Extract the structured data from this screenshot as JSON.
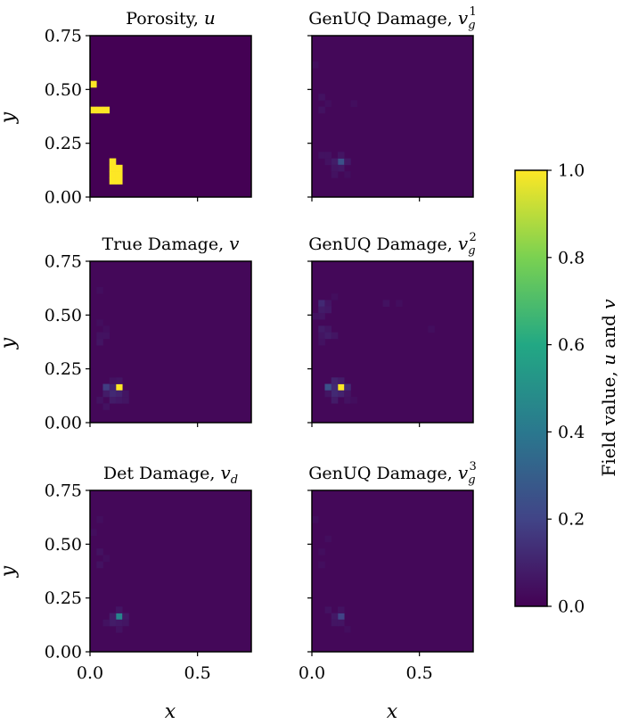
{
  "figure": {
    "colorbar": {
      "label_prefix": "Field value, ",
      "label_u": "u",
      "label_and": " and ",
      "label_v": "v",
      "ticks": [
        "0.0",
        "0.2",
        "0.4",
        "0.6",
        "0.8",
        "1.0"
      ],
      "range": [
        0,
        1
      ],
      "colormap": [
        "#440154",
        "#414487",
        "#2a788e",
        "#22a884",
        "#7ad151",
        "#fde725"
      ]
    },
    "x_label": "x",
    "y_label": "y",
    "x_ticks": [
      "0.0",
      "0.5"
    ],
    "y_ticks": [
      "0.00",
      "0.25",
      "0.50",
      "0.75"
    ]
  },
  "chart_data": [
    {
      "type": "heatmap",
      "panel": "porosity",
      "title_text": "Porosity, ",
      "title_math": "u",
      "title_sub": "",
      "title_sup": "",
      "xlim": [
        0,
        0.75
      ],
      "ylim": [
        0,
        0.75
      ],
      "grid_size": 25,
      "background": 0.0,
      "cells": [
        {
          "col": 0,
          "row": 17,
          "value": 1.0
        },
        {
          "col": 0,
          "row": 13,
          "value": 1.0
        },
        {
          "col": 1,
          "row": 13,
          "value": 1.0
        },
        {
          "col": 2,
          "row": 13,
          "value": 1.0
        },
        {
          "col": 3,
          "row": 5,
          "value": 1.0
        },
        {
          "col": 3,
          "row": 4,
          "value": 1.0
        },
        {
          "col": 4,
          "row": 4,
          "value": 1.0
        },
        {
          "col": 3,
          "row": 3,
          "value": 1.0
        },
        {
          "col": 4,
          "row": 3,
          "value": 1.0
        },
        {
          "col": 3,
          "row": 2,
          "value": 1.0
        },
        {
          "col": 4,
          "row": 2,
          "value": 1.0
        }
      ]
    },
    {
      "type": "heatmap",
      "panel": "genuq-1",
      "title_text": "GenUQ Damage, ",
      "title_math": "v",
      "title_sub": "g",
      "title_sup": "1",
      "xlim": [
        0,
        0.75
      ],
      "ylim": [
        0,
        0.75
      ],
      "grid_size": 25,
      "background": 0.02,
      "cells": [
        {
          "col": 4,
          "row": 5,
          "value": 0.25
        },
        {
          "col": 3,
          "row": 5,
          "value": 0.08
        },
        {
          "col": 5,
          "row": 5,
          "value": 0.07
        },
        {
          "col": 4,
          "row": 4,
          "value": 0.07
        },
        {
          "col": 3,
          "row": 4,
          "value": 0.06
        },
        {
          "col": 4,
          "row": 6,
          "value": 0.06
        },
        {
          "col": 2,
          "row": 6,
          "value": 0.05
        },
        {
          "col": 1,
          "row": 6,
          "value": 0.05
        },
        {
          "col": 2,
          "row": 5,
          "value": 0.05
        },
        {
          "col": 1,
          "row": 15,
          "value": 0.05
        },
        {
          "col": 1,
          "row": 13,
          "value": 0.05
        },
        {
          "col": 2,
          "row": 14,
          "value": 0.04
        },
        {
          "col": 3,
          "row": 3,
          "value": 0.05
        },
        {
          "col": 5,
          "row": 3,
          "value": 0.04
        },
        {
          "col": 0,
          "row": 20,
          "value": 0.04
        },
        {
          "col": 6,
          "row": 14,
          "value": 0.04
        }
      ]
    },
    {
      "type": "heatmap",
      "panel": "true-damage",
      "title_text": "True Damage, ",
      "title_math": "v",
      "title_sub": "",
      "title_sup": "",
      "xlim": [
        0,
        0.75
      ],
      "ylim": [
        0,
        0.75
      ],
      "grid_size": 25,
      "background": 0.02,
      "cells": [
        {
          "col": 4,
          "row": 5,
          "value": 1.0
        },
        {
          "col": 2,
          "row": 5,
          "value": 0.18
        },
        {
          "col": 3,
          "row": 5,
          "value": 0.1
        },
        {
          "col": 3,
          "row": 4,
          "value": 0.12
        },
        {
          "col": 4,
          "row": 4,
          "value": 0.1
        },
        {
          "col": 2,
          "row": 4,
          "value": 0.08
        },
        {
          "col": 3,
          "row": 3,
          "value": 0.08
        },
        {
          "col": 4,
          "row": 3,
          "value": 0.07
        },
        {
          "col": 5,
          "row": 3,
          "value": 0.06
        },
        {
          "col": 5,
          "row": 4,
          "value": 0.06
        },
        {
          "col": 4,
          "row": 6,
          "value": 0.06
        },
        {
          "col": 3,
          "row": 6,
          "value": 0.05
        },
        {
          "col": 1,
          "row": 3,
          "value": 0.05
        },
        {
          "col": 2,
          "row": 2,
          "value": 0.05
        },
        {
          "col": 1,
          "row": 12,
          "value": 0.06
        },
        {
          "col": 1,
          "row": 13,
          "value": 0.05
        },
        {
          "col": 2,
          "row": 13,
          "value": 0.05
        },
        {
          "col": 1,
          "row": 15,
          "value": 0.04
        },
        {
          "col": 2,
          "row": 14,
          "value": 0.04
        },
        {
          "col": 1,
          "row": 20,
          "value": 0.04
        }
      ]
    },
    {
      "type": "heatmap",
      "panel": "genuq-2",
      "title_text": "GenUQ Damage, ",
      "title_math": "v",
      "title_sub": "g",
      "title_sup": "2",
      "xlim": [
        0,
        0.75
      ],
      "ylim": [
        0,
        0.75
      ],
      "grid_size": 25,
      "background": 0.02,
      "cells": [
        {
          "col": 4,
          "row": 5,
          "value": 1.0
        },
        {
          "col": 2,
          "row": 5,
          "value": 0.25
        },
        {
          "col": 3,
          "row": 5,
          "value": 0.12
        },
        {
          "col": 5,
          "row": 5,
          "value": 0.12
        },
        {
          "col": 3,
          "row": 6,
          "value": 0.1
        },
        {
          "col": 4,
          "row": 6,
          "value": 0.08
        },
        {
          "col": 3,
          "row": 4,
          "value": 0.12
        },
        {
          "col": 4,
          "row": 4,
          "value": 0.1
        },
        {
          "col": 2,
          "row": 4,
          "value": 0.06
        },
        {
          "col": 5,
          "row": 4,
          "value": 0.06
        },
        {
          "col": 3,
          "row": 3,
          "value": 0.08
        },
        {
          "col": 5,
          "row": 3,
          "value": 0.05
        },
        {
          "col": 1,
          "row": 18,
          "value": 0.12
        },
        {
          "col": 2,
          "row": 18,
          "value": 0.06
        },
        {
          "col": 1,
          "row": 17,
          "value": 0.08
        },
        {
          "col": 2,
          "row": 17,
          "value": 0.07
        },
        {
          "col": 1,
          "row": 16,
          "value": 0.06
        },
        {
          "col": 0,
          "row": 16,
          "value": 0.05
        },
        {
          "col": 1,
          "row": 14,
          "value": 0.08
        },
        {
          "col": 2,
          "row": 14,
          "value": 0.06
        },
        {
          "col": 1,
          "row": 13,
          "value": 0.06
        },
        {
          "col": 2,
          "row": 13,
          "value": 0.08
        },
        {
          "col": 3,
          "row": 13,
          "value": 0.06
        },
        {
          "col": 1,
          "row": 12,
          "value": 0.05
        },
        {
          "col": 3,
          "row": 19,
          "value": 0.04
        },
        {
          "col": 11,
          "row": 18,
          "value": 0.05
        },
        {
          "col": 13,
          "row": 18,
          "value": 0.04
        },
        {
          "col": 18,
          "row": 14,
          "value": 0.04
        },
        {
          "col": 6,
          "row": 3,
          "value": 0.04
        }
      ]
    },
    {
      "type": "heatmap",
      "panel": "det-damage",
      "title_text": "Det Damage, ",
      "title_math": "v",
      "title_sub": "d",
      "title_sup": "",
      "xlim": [
        0,
        0.75
      ],
      "ylim": [
        0,
        0.75
      ],
      "grid_size": 25,
      "background": 0.02,
      "cells": [
        {
          "col": 4,
          "row": 5,
          "value": 0.45
        },
        {
          "col": 3,
          "row": 5,
          "value": 0.08
        },
        {
          "col": 5,
          "row": 5,
          "value": 0.07
        },
        {
          "col": 3,
          "row": 4,
          "value": 0.08
        },
        {
          "col": 4,
          "row": 4,
          "value": 0.07
        },
        {
          "col": 5,
          "row": 4,
          "value": 0.06
        },
        {
          "col": 2,
          "row": 4,
          "value": 0.05
        },
        {
          "col": 4,
          "row": 6,
          "value": 0.06
        },
        {
          "col": 1,
          "row": 13,
          "value": 0.05
        },
        {
          "col": 1,
          "row": 15,
          "value": 0.05
        },
        {
          "col": 2,
          "row": 14,
          "value": 0.04
        },
        {
          "col": 0,
          "row": 18,
          "value": 0.04
        },
        {
          "col": 1,
          "row": 20,
          "value": 0.04
        },
        {
          "col": 4,
          "row": 3,
          "value": 0.05
        }
      ]
    },
    {
      "type": "heatmap",
      "panel": "genuq-3",
      "title_text": "GenUQ Damage, ",
      "title_math": "v",
      "title_sub": "g",
      "title_sup": "3",
      "xlim": [
        0,
        0.75
      ],
      "ylim": [
        0,
        0.75
      ],
      "grid_size": 25,
      "background": 0.02,
      "cells": [
        {
          "col": 4,
          "row": 5,
          "value": 0.2
        },
        {
          "col": 3,
          "row": 5,
          "value": 0.07
        },
        {
          "col": 3,
          "row": 4,
          "value": 0.06
        },
        {
          "col": 4,
          "row": 4,
          "value": 0.06
        },
        {
          "col": 4,
          "row": 6,
          "value": 0.05
        },
        {
          "col": 2,
          "row": 6,
          "value": 0.05
        },
        {
          "col": 1,
          "row": 13,
          "value": 0.04
        },
        {
          "col": 1,
          "row": 15,
          "value": 0.04
        },
        {
          "col": 2,
          "row": 17,
          "value": 0.04
        },
        {
          "col": 0,
          "row": 20,
          "value": 0.04
        },
        {
          "col": 5,
          "row": 3,
          "value": 0.04
        }
      ]
    }
  ]
}
